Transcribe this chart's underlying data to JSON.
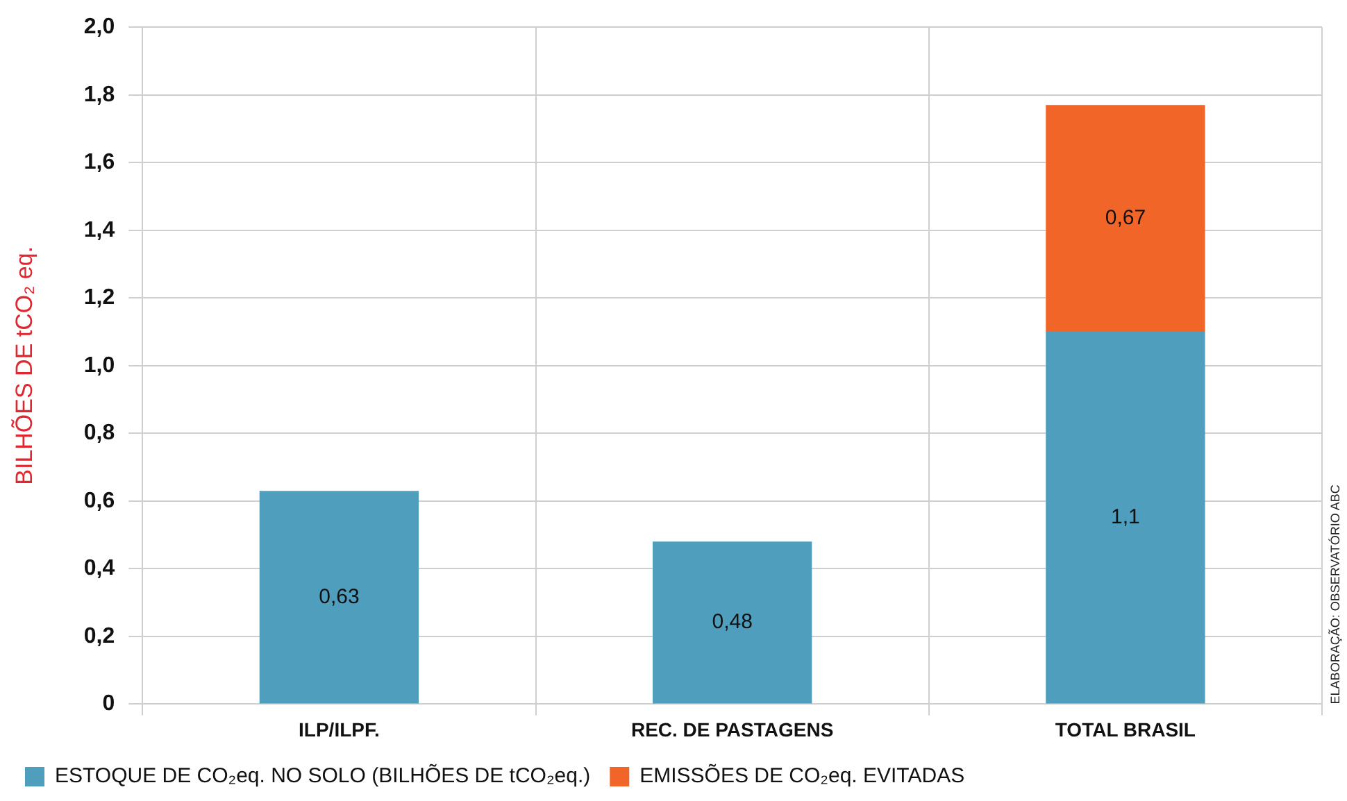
{
  "chart_data": {
    "type": "bar",
    "stacked": true,
    "ylabel": "BILHÕES DE tCO₂ eq.",
    "categories": [
      "ILP/ILPF.",
      "REC. DE PASTAGENS",
      "TOTAL BRASIL"
    ],
    "series": [
      {
        "name": "ESTOQUE DE CO₂eq. NO SOLO (BILHÕES DE tCO₂eq.)",
        "color": "#4f9ebd",
        "values": [
          0.63,
          0.48,
          1.1
        ],
        "value_labels": [
          "0,63",
          "0,48",
          "1,1"
        ]
      },
      {
        "name": "EMISSÕES DE CO₂eq. EVITADAS",
        "color": "#f26529",
        "values": [
          null,
          null,
          0.67
        ],
        "value_labels": [
          null,
          null,
          "0,67"
        ]
      }
    ],
    "ylim": [
      0,
      2
    ],
    "yticks": [
      {
        "value": 0,
        "label": "0"
      },
      {
        "value": 0.2,
        "label": "0,2"
      },
      {
        "value": 0.4,
        "label": "0,4"
      },
      {
        "value": 0.6,
        "label": "0,6"
      },
      {
        "value": 0.8,
        "label": "0,8"
      },
      {
        "value": 1,
        "label": "1,0"
      },
      {
        "value": 1.2,
        "label": "1,2"
      },
      {
        "value": 1.4,
        "label": "1,4"
      },
      {
        "value": 1.6,
        "label": "1,6"
      },
      {
        "value": 1.8,
        "label": "1,8"
      },
      {
        "value": 2,
        "label": "2,0"
      }
    ],
    "grid": true,
    "legend": "bottom",
    "annotations": [
      "ELABORAÇÃO: OBSERVATÓRIO ABC"
    ]
  }
}
